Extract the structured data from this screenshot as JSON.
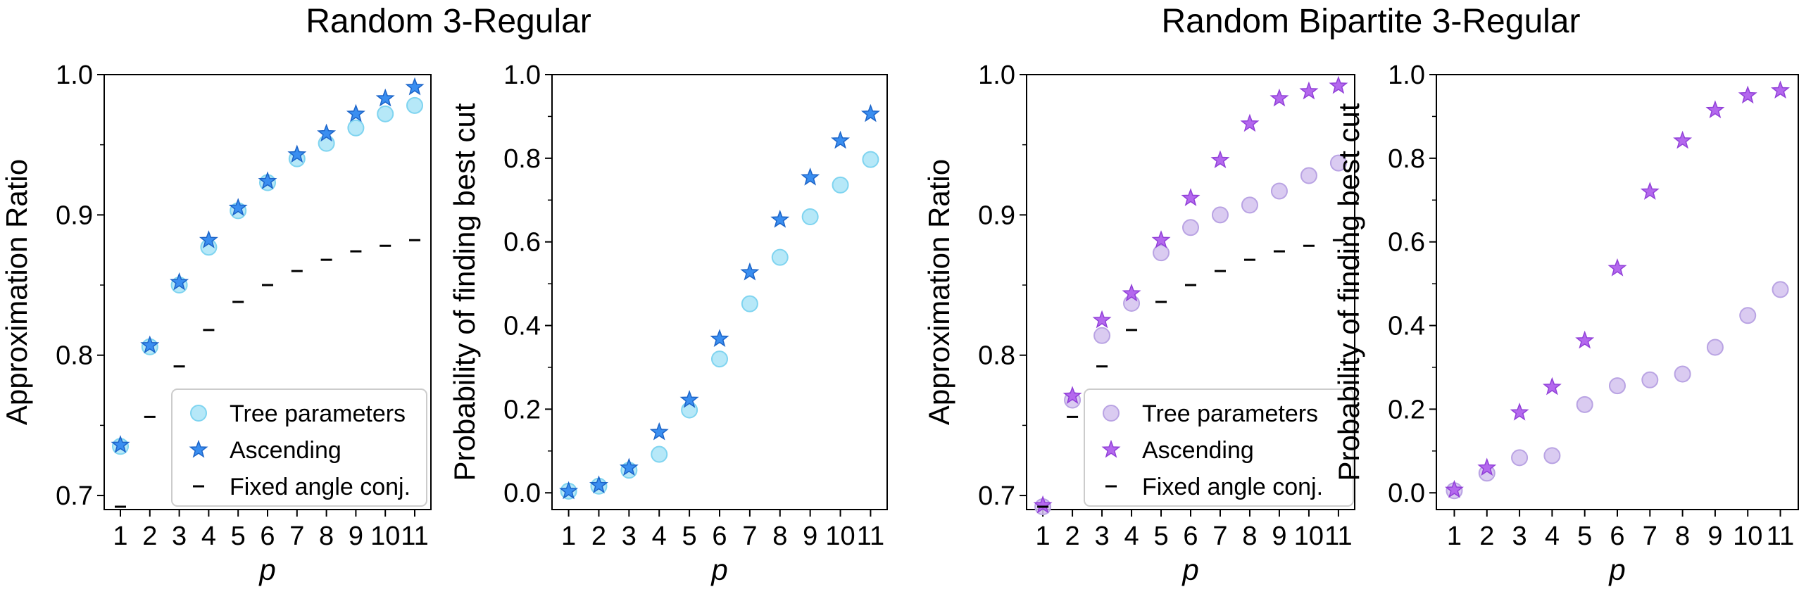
{
  "group_titles": [
    "Random 3-Regular",
    "Random Bipartite 3-Regular"
  ],
  "colors": {
    "tree_cyan": "#a9e4f7",
    "tree_cyan_edge": "#7fd4f0",
    "asc_blue": "#3a8ef0",
    "asc_blue_edge": "#1c64c8",
    "tree_purple": "#d3c2ee",
    "tree_purple_edge": "#b9a3e3",
    "asc_purple": "#b468ee",
    "asc_purple_edge": "#9140d8",
    "fixed": "#000000"
  },
  "chart_data": [
    {
      "type": "scatter",
      "group": "Random 3-Regular",
      "title": "",
      "xlabel": "p",
      "ylabel": "Approximation Ratio",
      "ylim": [
        0.69,
        1.0
      ],
      "yticks": [
        0.7,
        0.8,
        0.9,
        1.0
      ],
      "x": [
        1,
        2,
        3,
        4,
        5,
        6,
        7,
        8,
        9,
        10,
        11
      ],
      "legend": {
        "position": "lower-right",
        "entries": [
          "Tree parameters",
          "Ascending",
          "Fixed angle conj."
        ]
      },
      "series": [
        {
          "name": "Tree parameters",
          "marker": "circle",
          "color_key": "tree_cyan",
          "values": [
            0.735,
            0.806,
            0.85,
            0.877,
            0.903,
            0.923,
            0.94,
            0.951,
            0.962,
            0.972,
            0.978
          ]
        },
        {
          "name": "Ascending",
          "marker": "star",
          "color_key": "asc_blue",
          "values": [
            0.736,
            0.807,
            0.852,
            0.882,
            0.905,
            0.924,
            0.943,
            0.958,
            0.972,
            0.983,
            0.991
          ]
        },
        {
          "name": "Fixed angle conj.",
          "marker": "dash",
          "color_key": "fixed",
          "values": [
            0.692,
            0.756,
            0.792,
            0.818,
            0.838,
            0.85,
            0.86,
            0.868,
            0.874,
            0.878,
            0.882
          ]
        }
      ]
    },
    {
      "type": "scatter",
      "group": "Random 3-Regular",
      "title": "",
      "xlabel": "p",
      "ylabel": "Probability of finding best cut",
      "ylim": [
        -0.04,
        1.0
      ],
      "yticks": [
        0.0,
        0.2,
        0.4,
        0.6,
        0.8,
        1.0
      ],
      "x": [
        1,
        2,
        3,
        4,
        5,
        6,
        7,
        8,
        9,
        10,
        11
      ],
      "legend": null,
      "series": [
        {
          "name": "Tree parameters",
          "marker": "circle",
          "color_key": "tree_cyan",
          "values": [
            0.004,
            0.016,
            0.054,
            0.092,
            0.198,
            0.32,
            0.452,
            0.563,
            0.66,
            0.736,
            0.797
          ]
        },
        {
          "name": "Ascending",
          "marker": "star",
          "color_key": "asc_blue",
          "values": [
            0.004,
            0.018,
            0.06,
            0.145,
            0.222,
            0.368,
            0.527,
            0.653,
            0.754,
            0.842,
            0.906
          ]
        }
      ]
    },
    {
      "type": "scatter",
      "group": "Random Bipartite 3-Regular",
      "title": "",
      "xlabel": "p",
      "ylabel": "Approximation Ratio",
      "ylim": [
        0.69,
        1.0
      ],
      "yticks": [
        0.7,
        0.8,
        0.9,
        1.0
      ],
      "x": [
        1,
        2,
        3,
        4,
        5,
        6,
        7,
        8,
        9,
        10,
        11
      ],
      "legend": {
        "position": "lower-right",
        "entries": [
          "Tree parameters",
          "Ascending",
          "Fixed angle conj."
        ]
      },
      "series": [
        {
          "name": "Tree parameters",
          "marker": "circle",
          "color_key": "tree_purple",
          "values": [
            0.692,
            0.768,
            0.814,
            0.837,
            0.873,
            0.891,
            0.9,
            0.907,
            0.917,
            0.928,
            0.937
          ]
        },
        {
          "name": "Ascending",
          "marker": "star",
          "color_key": "asc_purple",
          "values": [
            0.693,
            0.771,
            0.825,
            0.844,
            0.882,
            0.912,
            0.939,
            0.965,
            0.983,
            0.988,
            0.992
          ]
        },
        {
          "name": "Fixed angle conj.",
          "marker": "dash",
          "color_key": "fixed",
          "values": [
            0.692,
            0.756,
            0.792,
            0.818,
            0.838,
            0.85,
            0.86,
            0.868,
            0.874,
            0.878,
            0.882
          ]
        }
      ]
    },
    {
      "type": "scatter",
      "group": "Random Bipartite 3-Regular",
      "title": "",
      "xlabel": "p",
      "ylabel": "Probability of finding best cut",
      "ylim": [
        -0.04,
        1.0
      ],
      "yticks": [
        0.0,
        0.2,
        0.4,
        0.6,
        0.8,
        1.0
      ],
      "x": [
        1,
        2,
        3,
        4,
        5,
        6,
        7,
        8,
        9,
        10,
        11
      ],
      "legend": null,
      "series": [
        {
          "name": "Tree parameters",
          "marker": "circle",
          "color_key": "tree_purple",
          "values": [
            0.005,
            0.047,
            0.084,
            0.089,
            0.211,
            0.256,
            0.27,
            0.284,
            0.348,
            0.424,
            0.486
          ]
        },
        {
          "name": "Ascending",
          "marker": "star",
          "color_key": "asc_purple",
          "values": [
            0.007,
            0.06,
            0.192,
            0.253,
            0.364,
            0.537,
            0.72,
            0.842,
            0.915,
            0.95,
            0.962
          ]
        }
      ]
    }
  ]
}
